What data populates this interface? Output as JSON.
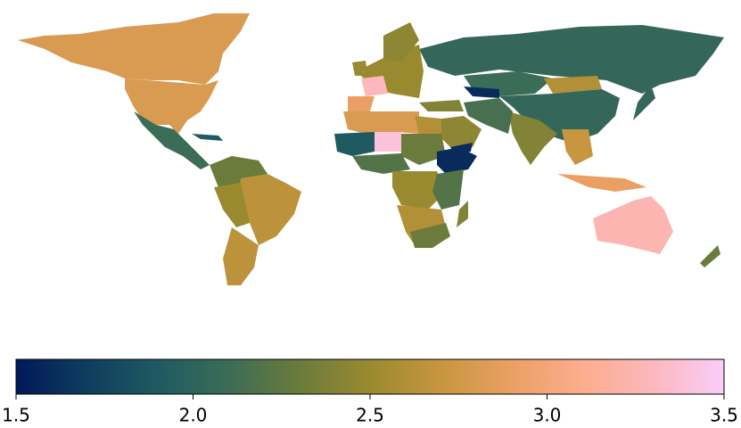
{
  "chart_data": {
    "type": "choropleth",
    "values": [
      2.8,
      2.8,
      2.1,
      1.9,
      2.3,
      2.65,
      2.5,
      2.65,
      2.05,
      2.1,
      2.6,
      2.05,
      2.4,
      2.15,
      1.6,
      2.45,
      1.6,
      2.4,
      2.5,
      2.45,
      3.3,
      2.9,
      2.5,
      2.8,
      2.6,
      1.9,
      3.4,
      2.3,
      1.6,
      2.2,
      2.5,
      2.2,
      2.6,
      2.3,
      2.4,
      2.05,
      2.7,
      2.9,
      3.25,
      2.3
    ],
    "clim": [
      1.5,
      3.5
    ],
    "cticks": [
      1.5,
      {
        "value": 2,
        "label": "2.0"
      },
      2.5,
      {
        "value": 3,
        "label": "3.0"
      },
      3.5
    ],
    "colormap": [
      "#011959",
      "#0f3d5e",
      "#1f5a61",
      "#3b6c56",
      "#6a7b3c",
      "#9a8a2f",
      "#c7963f",
      "#eaa064",
      "#fcad8d",
      "#fcb8bd",
      "#facdf9"
    ]
  }
}
